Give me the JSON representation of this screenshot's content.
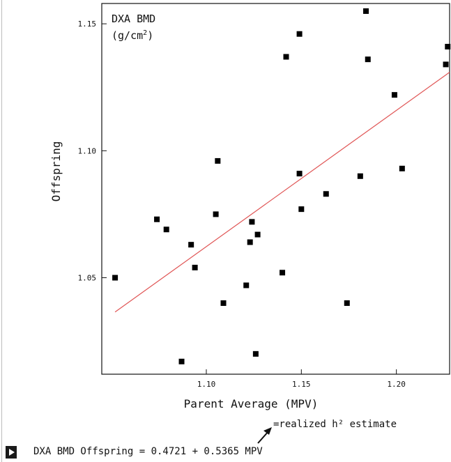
{
  "chart_data": {
    "type": "scatter",
    "title_line1": "DXA BMD",
    "title_line2_prefix": "(g/cm",
    "title_line2_sup": "2",
    "title_line2_suffix": ")",
    "xlabel": "Parent Average (MPV)",
    "ylabel": "Offspring",
    "xlim": [
      1.045,
      1.228
    ],
    "ylim": [
      1.012,
      1.158
    ],
    "xticks": [
      1.1,
      1.15,
      1.2
    ],
    "xtick_labels": [
      "1.10",
      "1.15",
      "1.20"
    ],
    "yticks": [
      1.05,
      1.1,
      1.15
    ],
    "ytick_labels": [
      "1.05",
      "1.10",
      "1.15"
    ],
    "points": [
      {
        "x": 1.052,
        "y": 1.05
      },
      {
        "x": 1.074,
        "y": 1.073
      },
      {
        "x": 1.079,
        "y": 1.069
      },
      {
        "x": 1.087,
        "y": 1.017
      },
      {
        "x": 1.092,
        "y": 1.063
      },
      {
        "x": 1.094,
        "y": 1.054
      },
      {
        "x": 1.105,
        "y": 1.075
      },
      {
        "x": 1.106,
        "y": 1.096
      },
      {
        "x": 1.109,
        "y": 1.04
      },
      {
        "x": 1.121,
        "y": 1.047
      },
      {
        "x": 1.123,
        "y": 1.064
      },
      {
        "x": 1.124,
        "y": 1.072
      },
      {
        "x": 1.126,
        "y": 1.02
      },
      {
        "x": 1.127,
        "y": 1.067
      },
      {
        "x": 1.14,
        "y": 1.052
      },
      {
        "x": 1.142,
        "y": 1.137
      },
      {
        "x": 1.149,
        "y": 1.146
      },
      {
        "x": 1.149,
        "y": 1.091
      },
      {
        "x": 1.15,
        "y": 1.077
      },
      {
        "x": 1.163,
        "y": 1.083
      },
      {
        "x": 1.174,
        "y": 1.04
      },
      {
        "x": 1.181,
        "y": 1.09
      },
      {
        "x": 1.184,
        "y": 1.155
      },
      {
        "x": 1.185,
        "y": 1.136
      },
      {
        "x": 1.199,
        "y": 1.122
      },
      {
        "x": 1.203,
        "y": 1.093
      },
      {
        "x": 1.227,
        "y": 1.141
      },
      {
        "x": 1.226,
        "y": 1.134
      }
    ],
    "fit": {
      "intercept": 0.4721,
      "slope": 0.5365,
      "color": "#e05555"
    },
    "point_color": "#000000",
    "grid": false
  },
  "annotation": {
    "text": "=realized h² estimate"
  },
  "equation": {
    "text": "DXA BMD Offspring = 0.4721 + 0.5365 MPV"
  }
}
